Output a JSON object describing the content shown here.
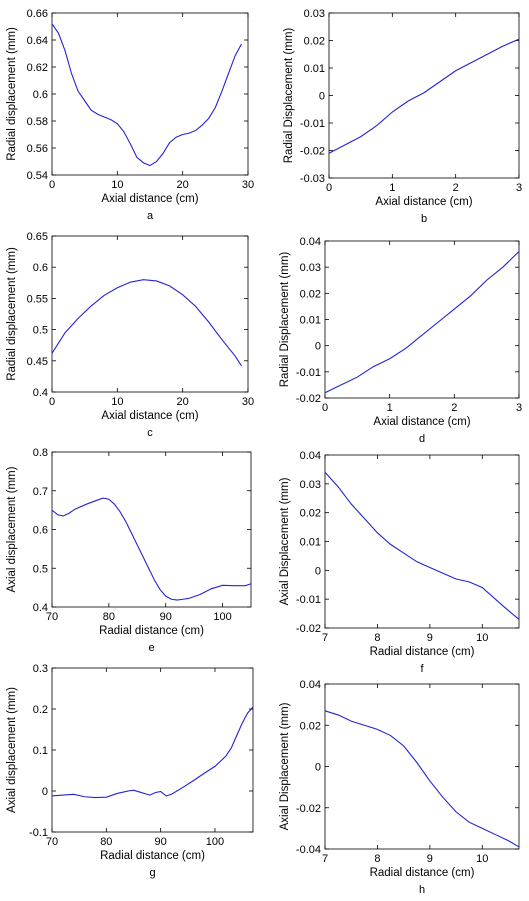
{
  "colors": {
    "line": "#2323d8",
    "axes": "#000000",
    "background": "#ffffff"
  },
  "chart_data": [
    {
      "panel": "a",
      "type": "line",
      "xlabel": "Axial distance (cm)",
      "ylabel": "Radial displacement (mm)",
      "xlim": [
        0,
        30
      ],
      "ylim": [
        0.54,
        0.66
      ],
      "xticks": [
        0,
        10,
        20,
        30
      ],
      "xtick_labels": [
        "0",
        "10",
        "20",
        "30"
      ],
      "yticks": [
        0.54,
        0.56,
        0.58,
        0.6,
        0.62,
        0.64,
        0.66
      ],
      "ytick_labels": [
        "0.54",
        "0.56",
        "0.58",
        "0.6",
        "0.62",
        "0.64",
        "0.66"
      ],
      "grid": false,
      "series": [
        {
          "x": [
            0,
            1,
            2,
            3,
            4,
            5,
            6,
            7,
            8,
            9,
            10,
            11,
            12,
            13,
            14,
            15,
            16,
            17,
            18,
            19,
            20,
            21,
            22,
            23,
            24,
            25,
            26,
            27,
            28,
            29
          ],
          "y": [
            0.652,
            0.645,
            0.632,
            0.615,
            0.602,
            0.595,
            0.588,
            0.585,
            0.583,
            0.581,
            0.578,
            0.572,
            0.563,
            0.553,
            0.549,
            0.547,
            0.55,
            0.556,
            0.564,
            0.568,
            0.57,
            0.571,
            0.573,
            0.577,
            0.582,
            0.59,
            0.602,
            0.615,
            0.628,
            0.637
          ]
        }
      ]
    },
    {
      "panel": "b",
      "type": "line",
      "xlabel": "Axial distance (cm)",
      "ylabel": "Radial Displacement (mm)",
      "xlim": [
        0,
        3
      ],
      "ylim": [
        -0.03,
        0.03
      ],
      "xticks": [
        0,
        1,
        2,
        3
      ],
      "xtick_labels": [
        "0",
        "1",
        "2",
        "3"
      ],
      "yticks": [
        -0.03,
        -0.02,
        -0.01,
        0,
        0.01,
        0.02,
        0.03
      ],
      "ytick_labels": [
        "-0.03",
        "-0.02",
        "-0.01",
        "0",
        "0.01",
        "0.02",
        "0.03"
      ],
      "grid": false,
      "series": [
        {
          "x": [
            0,
            0.25,
            0.5,
            0.75,
            1,
            1.25,
            1.5,
            1.75,
            2,
            2.25,
            2.5,
            2.75,
            3
          ],
          "y": [
            -0.021,
            -0.018,
            -0.015,
            -0.011,
            -0.006,
            -0.002,
            0.001,
            0.005,
            0.009,
            0.012,
            0.015,
            0.018,
            0.0205
          ]
        }
      ]
    },
    {
      "panel": "c",
      "type": "line",
      "xlabel": "Axial distance (cm)",
      "ylabel": "Radial displacement (mm)",
      "xlim": [
        0,
        30
      ],
      "ylim": [
        0.4,
        0.65
      ],
      "xticks": [
        0,
        10,
        20,
        30
      ],
      "xtick_labels": [
        "0",
        "10",
        "20",
        "30"
      ],
      "yticks": [
        0.4,
        0.45,
        0.5,
        0.55,
        0.6,
        0.65
      ],
      "ytick_labels": [
        "0.4",
        "0.45",
        "0.5",
        "0.55",
        "0.6",
        "0.65"
      ],
      "grid": false,
      "series": [
        {
          "x": [
            0,
            2,
            4,
            6,
            8,
            10,
            12,
            14,
            16,
            18,
            20,
            22,
            24,
            26,
            28,
            29
          ],
          "y": [
            0.462,
            0.495,
            0.518,
            0.538,
            0.555,
            0.567,
            0.576,
            0.58,
            0.578,
            0.57,
            0.556,
            0.537,
            0.512,
            0.484,
            0.458,
            0.442
          ]
        }
      ]
    },
    {
      "panel": "d",
      "type": "line",
      "xlabel": "Axial distance (cm)",
      "ylabel": "Radial Displacement (mm)",
      "xlim": [
        0,
        3
      ],
      "ylim": [
        -0.02,
        0.04
      ],
      "xticks": [
        0,
        1,
        2,
        3
      ],
      "xtick_labels": [
        "0",
        "1",
        "2",
        "3"
      ],
      "yticks": [
        -0.02,
        -0.01,
        0,
        0.01,
        0.02,
        0.03,
        0.04
      ],
      "ytick_labels": [
        "-0.02",
        "-0.01",
        "0",
        "0.01",
        "0.02",
        "0.03",
        "0.04"
      ],
      "grid": false,
      "series": [
        {
          "x": [
            0,
            0.25,
            0.5,
            0.75,
            1,
            1.25,
            1.5,
            1.75,
            2,
            2.25,
            2.5,
            2.75,
            3
          ],
          "y": [
            -0.018,
            -0.015,
            -0.012,
            -0.008,
            -0.005,
            -0.001,
            0.004,
            0.009,
            0.014,
            0.019,
            0.025,
            0.03,
            0.036
          ]
        }
      ]
    },
    {
      "panel": "e",
      "type": "line",
      "xlabel": "Radial distance (cm)",
      "ylabel": "Axial displacement (mm)",
      "xlim": [
        70,
        105
      ],
      "ylim": [
        0.4,
        0.8
      ],
      "xticks": [
        70,
        80,
        90,
        100
      ],
      "xtick_labels": [
        "70",
        "80",
        "90",
        "100"
      ],
      "yticks": [
        0.4,
        0.5,
        0.6,
        0.7,
        0.8
      ],
      "ytick_labels": [
        "0.4",
        "0.5",
        "0.6",
        "0.7",
        "0.8"
      ],
      "grid": false,
      "series": [
        {
          "x": [
            70,
            71,
            72,
            73,
            74,
            76,
            78,
            79,
            80,
            81,
            82,
            83,
            84,
            85,
            86,
            87,
            88,
            89,
            90,
            91,
            92,
            93,
            94,
            96,
            98,
            100,
            102,
            104,
            105
          ],
          "y": [
            0.65,
            0.638,
            0.635,
            0.642,
            0.652,
            0.665,
            0.676,
            0.681,
            0.678,
            0.665,
            0.645,
            0.62,
            0.59,
            0.56,
            0.53,
            0.5,
            0.47,
            0.445,
            0.428,
            0.42,
            0.418,
            0.42,
            0.422,
            0.432,
            0.447,
            0.456,
            0.455,
            0.455,
            0.46
          ]
        }
      ]
    },
    {
      "panel": "f",
      "type": "line",
      "xlabel": "Radial distance (cm)",
      "ylabel": "Axial Displacement (mm)",
      "xlim": [
        7,
        10.7
      ],
      "ylim": [
        -0.02,
        0.04
      ],
      "xticks": [
        7,
        8,
        9,
        10
      ],
      "xtick_labels": [
        "7",
        "8",
        "9",
        "10"
      ],
      "yticks": [
        -0.02,
        -0.01,
        0,
        0.01,
        0.02,
        0.03,
        0.04
      ],
      "ytick_labels": [
        "-0.02",
        "-0.01",
        "0",
        "0.01",
        "0.02",
        "0.03",
        "0.04"
      ],
      "grid": false,
      "series": [
        {
          "x": [
            7,
            7.25,
            7.5,
            7.75,
            8,
            8.25,
            8.5,
            8.75,
            9,
            9.25,
            9.5,
            9.75,
            10,
            10.25,
            10.5,
            10.7
          ],
          "y": [
            0.034,
            0.029,
            0.023,
            0.018,
            0.013,
            0.009,
            0.006,
            0.003,
            0.001,
            -0.001,
            -0.003,
            -0.004,
            -0.006,
            -0.01,
            -0.014,
            -0.017
          ]
        }
      ]
    },
    {
      "panel": "g",
      "type": "line",
      "xlabel": "Radial distance (cm)",
      "ylabel": "Axial displacement (mm)",
      "xlim": [
        70,
        107
      ],
      "ylim": [
        -0.1,
        0.3
      ],
      "xticks": [
        70,
        80,
        90,
        100
      ],
      "xtick_labels": [
        "70",
        "80",
        "90",
        "100"
      ],
      "yticks": [
        -0.1,
        0,
        0.1,
        0.2,
        0.3
      ],
      "ytick_labels": [
        "-0.1",
        "0",
        "0.1",
        "0.2",
        "0.3"
      ],
      "grid": false,
      "series": [
        {
          "x": [
            70,
            72,
            74,
            76,
            78,
            80,
            82,
            84,
            85,
            86,
            88,
            89,
            90,
            91,
            92,
            94,
            96,
            98,
            100,
            102,
            103,
            104,
            105,
            106,
            107
          ],
          "y": [
            -0.012,
            -0.01,
            -0.008,
            -0.014,
            -0.016,
            -0.015,
            -0.006,
            0.0,
            0.002,
            -0.002,
            -0.01,
            -0.004,
            -0.001,
            -0.012,
            -0.008,
            0.008,
            0.025,
            0.043,
            0.06,
            0.085,
            0.105,
            0.135,
            0.165,
            0.19,
            0.205
          ]
        }
      ]
    },
    {
      "panel": "h",
      "type": "line",
      "xlabel": "Radial distance (cm)",
      "ylabel": "Axial Displacement (mm)",
      "xlim": [
        7,
        10.7
      ],
      "ylim": [
        -0.04,
        0.04
      ],
      "xticks": [
        7,
        8,
        9,
        10
      ],
      "xtick_labels": [
        "7",
        "8",
        "9",
        "10"
      ],
      "yticks": [
        -0.04,
        -0.02,
        0,
        0.02,
        0.04
      ],
      "ytick_labels": [
        "-0.04",
        "-0.02",
        "0",
        "0.02",
        "0.04"
      ],
      "grid": false,
      "series": [
        {
          "x": [
            7,
            7.25,
            7.5,
            7.75,
            8,
            8.25,
            8.5,
            8.75,
            9,
            9.25,
            9.5,
            9.75,
            10,
            10.25,
            10.5,
            10.7
          ],
          "y": [
            0.027,
            0.025,
            0.022,
            0.02,
            0.018,
            0.015,
            0.01,
            0.002,
            -0.007,
            -0.015,
            -0.022,
            -0.027,
            -0.03,
            -0.033,
            -0.036,
            -0.039
          ]
        }
      ]
    }
  ]
}
